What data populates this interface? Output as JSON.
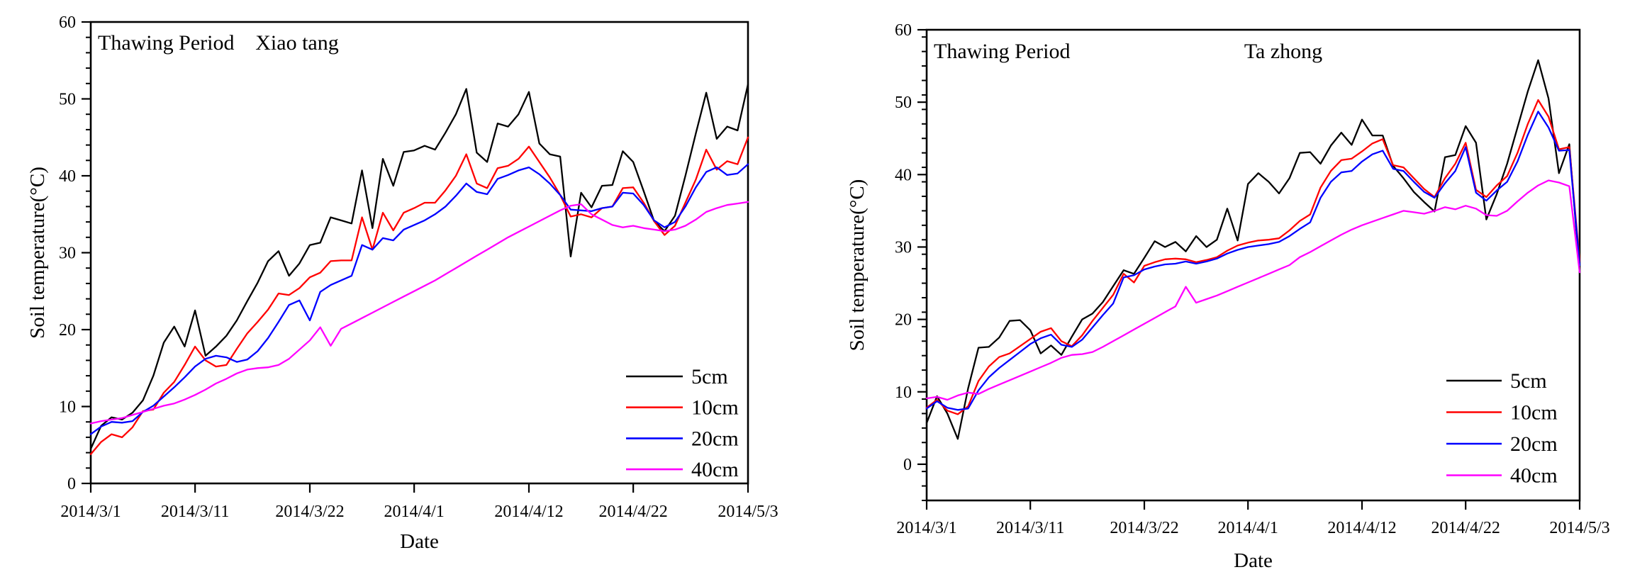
{
  "figure": {
    "background": "#ffffff",
    "description": "Soil temperature at four depths during the thawing period at two sites"
  },
  "chart_data": [
    {
      "type": "line",
      "title": "Xiao tang",
      "annotation": "Thawing Period",
      "xlabel": "Date",
      "ylabel": "Soil temperature(°C)",
      "x_start_date": "2014/3/1",
      "x_end_date": "2014/5/3",
      "x_tick_labels": [
        "2014/3/1",
        "2014/3/11",
        "2014/3/22",
        "2014/4/1",
        "2014/4/12",
        "2014/4/22",
        "2014/5/3"
      ],
      "x_tick_days": [
        0,
        10,
        21,
        31,
        42,
        52,
        63
      ],
      "ylim": [
        0,
        60
      ],
      "y_ticks": [
        0,
        10,
        20,
        30,
        40,
        50,
        60
      ],
      "y_minor_step": 2,
      "grid": false,
      "legend_position": "lower-right",
      "series": [
        {
          "name": "5cm",
          "color": "#000000",
          "values": [
            4.5,
            7.5,
            8.6,
            8.3,
            9.2,
            10.8,
            14.0,
            18.3,
            20.4,
            17.8,
            22.5,
            16.6,
            17.8,
            19.2,
            21.2,
            23.7,
            26.1,
            28.9,
            30.2,
            27.0,
            28.6,
            31.0,
            31.3,
            34.6,
            34.2,
            33.8,
            40.7,
            33.2,
            42.2,
            38.7,
            43.1,
            43.3,
            43.9,
            43.4,
            45.6,
            48.0,
            51.3,
            43.0,
            41.8,
            46.8,
            46.4,
            48.0,
            50.9,
            44.2,
            42.8,
            42.5,
            29.5,
            37.8,
            35.9,
            38.7,
            38.8,
            43.2,
            41.8,
            38.0,
            34.1,
            32.8,
            34.8,
            40.0,
            45.5,
            50.8,
            44.8,
            46.4,
            45.9,
            51.9
          ]
        },
        {
          "name": "10cm",
          "color": "#ff0000",
          "values": [
            3.8,
            5.4,
            6.4,
            6.0,
            7.3,
            9.4,
            9.6,
            11.8,
            13.2,
            15.4,
            17.8,
            16.0,
            15.2,
            15.4,
            17.5,
            19.5,
            21.0,
            22.6,
            24.7,
            24.5,
            25.4,
            26.8,
            27.4,
            28.9,
            29.0,
            29.0,
            34.6,
            30.4,
            35.2,
            32.9,
            35.2,
            35.8,
            36.5,
            36.5,
            38.1,
            40.0,
            42.8,
            39.0,
            38.4,
            41.0,
            41.3,
            42.2,
            43.8,
            41.8,
            39.8,
            37.5,
            34.7,
            35.0,
            34.6,
            35.8,
            36.0,
            38.4,
            38.5,
            36.5,
            34.1,
            32.3,
            33.5,
            36.5,
            39.5,
            43.4,
            40.8,
            41.9,
            41.5,
            45.0
          ]
        },
        {
          "name": "20cm",
          "color": "#0000ff",
          "values": [
            6.4,
            7.4,
            8.0,
            7.9,
            8.1,
            9.3,
            10.1,
            11.3,
            12.5,
            13.8,
            15.2,
            16.2,
            16.6,
            16.4,
            15.8,
            16.1,
            17.2,
            18.9,
            21.0,
            23.2,
            23.8,
            21.2,
            24.9,
            25.8,
            26.4,
            27.0,
            31.0,
            30.4,
            31.9,
            31.6,
            33.0,
            33.6,
            34.2,
            35.0,
            36.0,
            37.4,
            39.0,
            37.9,
            37.6,
            39.6,
            40.1,
            40.7,
            41.1,
            40.2,
            39.0,
            37.5,
            35.6,
            35.5,
            35.4,
            35.8,
            36.0,
            37.8,
            37.7,
            36.2,
            34.2,
            33.3,
            34.0,
            36.0,
            38.5,
            40.5,
            41.1,
            40.1,
            40.3,
            41.5
          ]
        },
        {
          "name": "40cm",
          "color": "#ff00ff",
          "values": [
            7.8,
            8.1,
            8.3,
            8.5,
            8.9,
            9.3,
            9.7,
            10.1,
            10.4,
            10.9,
            11.5,
            12.2,
            13.0,
            13.6,
            14.3,
            14.8,
            15.0,
            15.1,
            15.4,
            16.2,
            17.4,
            18.6,
            20.3,
            17.9,
            20.1,
            20.8,
            21.5,
            22.2,
            22.9,
            23.6,
            24.3,
            25.0,
            25.7,
            26.4,
            27.2,
            28.0,
            28.8,
            29.6,
            30.4,
            31.2,
            32.0,
            32.7,
            33.4,
            34.1,
            34.8,
            35.5,
            36.1,
            36.3,
            35.0,
            34.3,
            33.6,
            33.3,
            33.5,
            33.2,
            33.0,
            32.8,
            33.0,
            33.5,
            34.3,
            35.3,
            35.8,
            36.2,
            36.4,
            36.6
          ]
        }
      ]
    },
    {
      "type": "line",
      "title": "Ta zhong",
      "annotation": "Thawing Period",
      "xlabel": "Date",
      "ylabel": "Soil temperature(°C)",
      "x_start_date": "2014/3/1",
      "x_end_date": "2014/5/3",
      "x_tick_labels": [
        "2014/3/1",
        "2014/3/11",
        "2014/3/22",
        "2014/4/1",
        "2014/4/12",
        "2014/4/22",
        "2014/5/3"
      ],
      "x_tick_days": [
        0,
        10,
        21,
        31,
        42,
        52,
        63
      ],
      "ylim": [
        -5,
        60
      ],
      "y_ticks": [
        0,
        10,
        20,
        30,
        40,
        50,
        60
      ],
      "y_minor_step": 2,
      "grid": false,
      "legend_position": "lower-right",
      "series": [
        {
          "name": "5cm",
          "color": "#000000",
          "values": [
            5.7,
            9.4,
            7.0,
            3.5,
            10.5,
            16.1,
            16.2,
            17.5,
            19.8,
            19.9,
            18.5,
            15.3,
            16.4,
            15.1,
            17.6,
            20.0,
            20.8,
            22.4,
            24.6,
            26.8,
            26.3,
            28.5,
            30.8,
            30.0,
            30.7,
            29.4,
            31.5,
            30.0,
            31.0,
            35.3,
            30.9,
            38.7,
            40.2,
            39.0,
            37.4,
            39.5,
            43.0,
            43.1,
            41.5,
            44.0,
            45.8,
            44.1,
            47.6,
            45.4,
            45.4,
            41.2,
            39.5,
            37.6,
            36.2,
            34.9,
            42.4,
            42.7,
            46.7,
            44.4,
            33.8,
            37.3,
            41.5,
            46.5,
            51.5,
            55.8,
            50.5,
            40.2,
            44.2,
            26.5
          ]
        },
        {
          "name": "10cm",
          "color": "#ff0000",
          "values": [
            7.8,
            8.9,
            7.4,
            6.9,
            8.0,
            11.5,
            13.5,
            14.8,
            15.3,
            16.3,
            17.3,
            18.3,
            18.8,
            17.0,
            16.3,
            17.8,
            19.8,
            21.6,
            23.4,
            26.3,
            25.1,
            27.4,
            27.9,
            28.3,
            28.4,
            28.3,
            27.9,
            28.2,
            28.6,
            29.5,
            30.2,
            30.6,
            30.9,
            31.0,
            31.2,
            32.3,
            33.6,
            34.5,
            38.2,
            40.5,
            42.0,
            42.2,
            43.2,
            44.3,
            44.9,
            41.3,
            41.0,
            39.5,
            38.0,
            36.9,
            39.5,
            41.5,
            44.4,
            37.9,
            36.9,
            38.5,
            39.8,
            43.0,
            47.0,
            50.3,
            48.0,
            43.5,
            43.8,
            28.0
          ]
        },
        {
          "name": "20cm",
          "color": "#0000ff",
          "values": [
            7.7,
            8.7,
            7.8,
            7.5,
            7.7,
            10.2,
            12.0,
            13.3,
            14.4,
            15.5,
            16.6,
            17.4,
            17.9,
            16.5,
            16.2,
            17.2,
            18.9,
            20.6,
            22.2,
            25.8,
            26.1,
            26.9,
            27.3,
            27.6,
            27.7,
            28.0,
            27.7,
            28.0,
            28.4,
            29.1,
            29.6,
            30.0,
            30.2,
            30.4,
            30.7,
            31.5,
            32.5,
            33.4,
            36.8,
            39.0,
            40.3,
            40.5,
            41.8,
            42.8,
            43.3,
            40.8,
            40.5,
            39.0,
            37.6,
            36.8,
            38.8,
            40.5,
            43.8,
            37.5,
            36.4,
            37.8,
            39.0,
            41.8,
            45.5,
            48.7,
            46.5,
            43.3,
            43.4,
            27.5
          ]
        },
        {
          "name": "40cm",
          "color": "#ff00ff",
          "values": [
            9.1,
            9.3,
            8.9,
            9.5,
            9.9,
            9.7,
            10.4,
            11.0,
            11.6,
            12.2,
            12.8,
            13.4,
            14.0,
            14.7,
            15.1,
            15.2,
            15.5,
            16.2,
            17.0,
            17.8,
            18.6,
            19.4,
            20.2,
            21.0,
            21.8,
            24.5,
            22.3,
            22.8,
            23.3,
            23.9,
            24.5,
            25.1,
            25.7,
            26.3,
            26.9,
            27.5,
            28.6,
            29.3,
            30.1,
            30.9,
            31.7,
            32.4,
            33.0,
            33.5,
            34.0,
            34.5,
            35.0,
            34.8,
            34.6,
            35.0,
            35.5,
            35.2,
            35.7,
            35.3,
            34.4,
            34.3,
            35.0,
            36.3,
            37.5,
            38.5,
            39.2,
            38.9,
            38.4,
            26.5
          ]
        }
      ]
    }
  ]
}
